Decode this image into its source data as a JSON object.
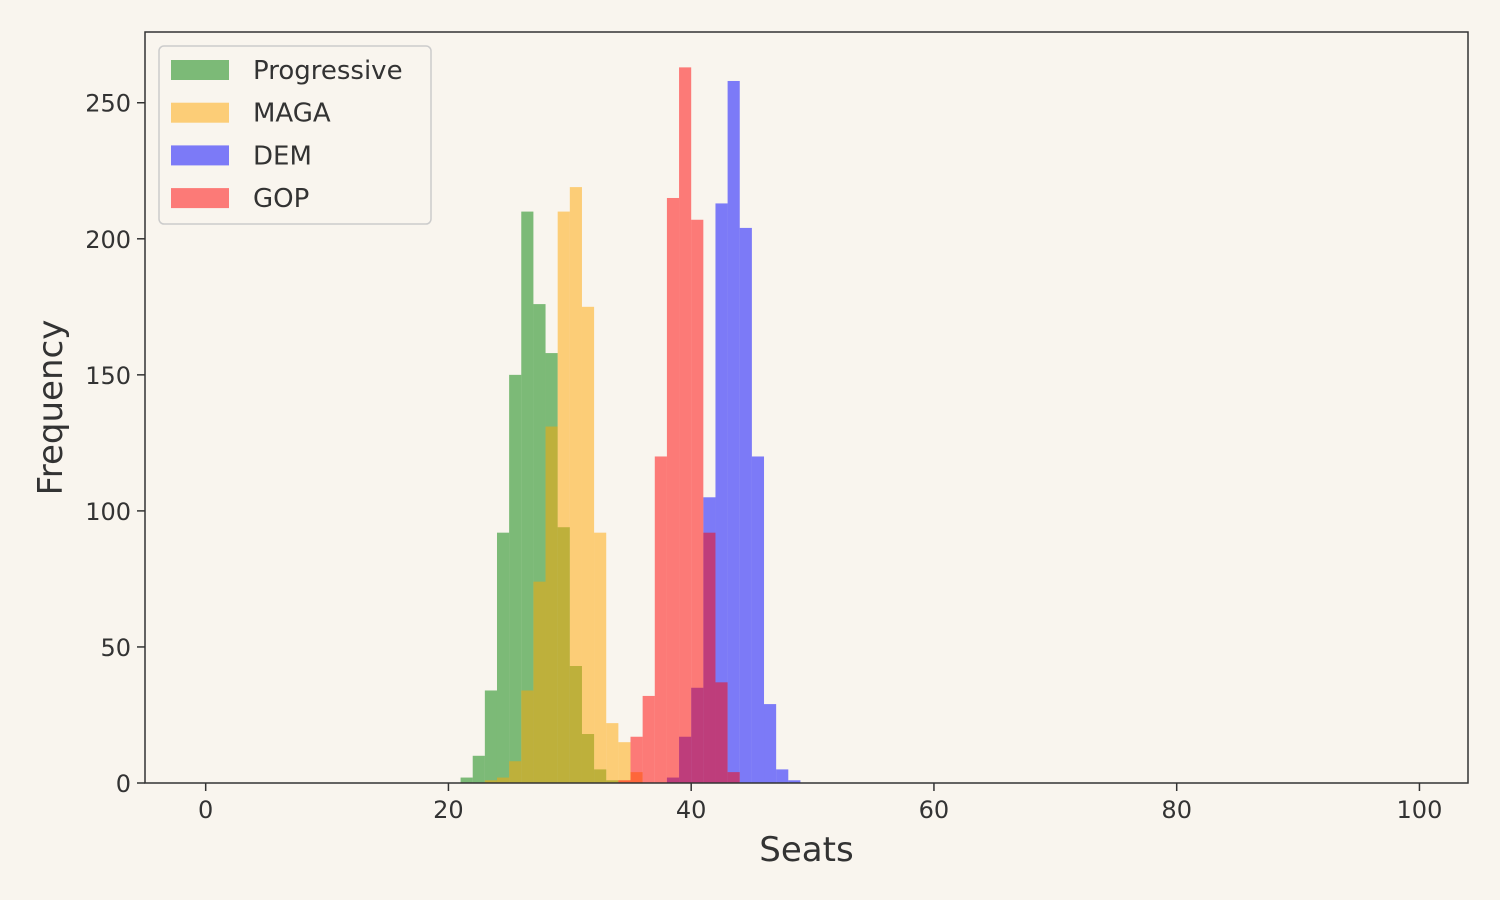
{
  "chart_data": {
    "type": "bar",
    "xlabel": "Seats",
    "ylabel": "Frequency",
    "xlim": [
      -5,
      104
    ],
    "ylim": [
      0,
      276
    ],
    "xticks": [
      0,
      20,
      40,
      60,
      80,
      100
    ],
    "yticks": [
      0,
      50,
      100,
      150,
      200,
      250
    ],
    "bin_width": 1,
    "grid": false,
    "legend_position": "top-left",
    "series": [
      {
        "name": "Progressive",
        "color": "#008000",
        "opacity": 0.5,
        "bins": [
          [
            21,
            2
          ],
          [
            22,
            10
          ],
          [
            23,
            34
          ],
          [
            24,
            92
          ],
          [
            25,
            150
          ],
          [
            26,
            210
          ],
          [
            27,
            176
          ],
          [
            28,
            158
          ],
          [
            29,
            94
          ],
          [
            30,
            43
          ],
          [
            31,
            18
          ],
          [
            32,
            5
          ],
          [
            33,
            1
          ]
        ]
      },
      {
        "name": "MAGA",
        "color": "#FFA500",
        "opacity": 0.5,
        "bins": [
          [
            23,
            1
          ],
          [
            24,
            2
          ],
          [
            25,
            8
          ],
          [
            26,
            34
          ],
          [
            27,
            74
          ],
          [
            28,
            131
          ],
          [
            29,
            210
          ],
          [
            30,
            219
          ],
          [
            31,
            175
          ],
          [
            32,
            92
          ],
          [
            33,
            22
          ],
          [
            34,
            15
          ],
          [
            35,
            4
          ]
        ]
      },
      {
        "name": "DEM",
        "color": "#0000FF",
        "opacity": 0.5,
        "bins": [
          [
            38,
            2
          ],
          [
            39,
            17
          ],
          [
            40,
            35
          ],
          [
            41,
            105
          ],
          [
            42,
            213
          ],
          [
            43,
            258
          ],
          [
            44,
            204
          ],
          [
            45,
            120
          ],
          [
            46,
            29
          ],
          [
            47,
            5
          ],
          [
            48,
            1
          ]
        ]
      },
      {
        "name": "GOP",
        "color": "#FF0000",
        "opacity": 0.5,
        "bins": [
          [
            34,
            1
          ],
          [
            35,
            17
          ],
          [
            36,
            32
          ],
          [
            37,
            120
          ],
          [
            38,
            215
          ],
          [
            39,
            263
          ],
          [
            40,
            207
          ],
          [
            41,
            92
          ],
          [
            42,
            37
          ],
          [
            43,
            4
          ]
        ]
      }
    ]
  }
}
